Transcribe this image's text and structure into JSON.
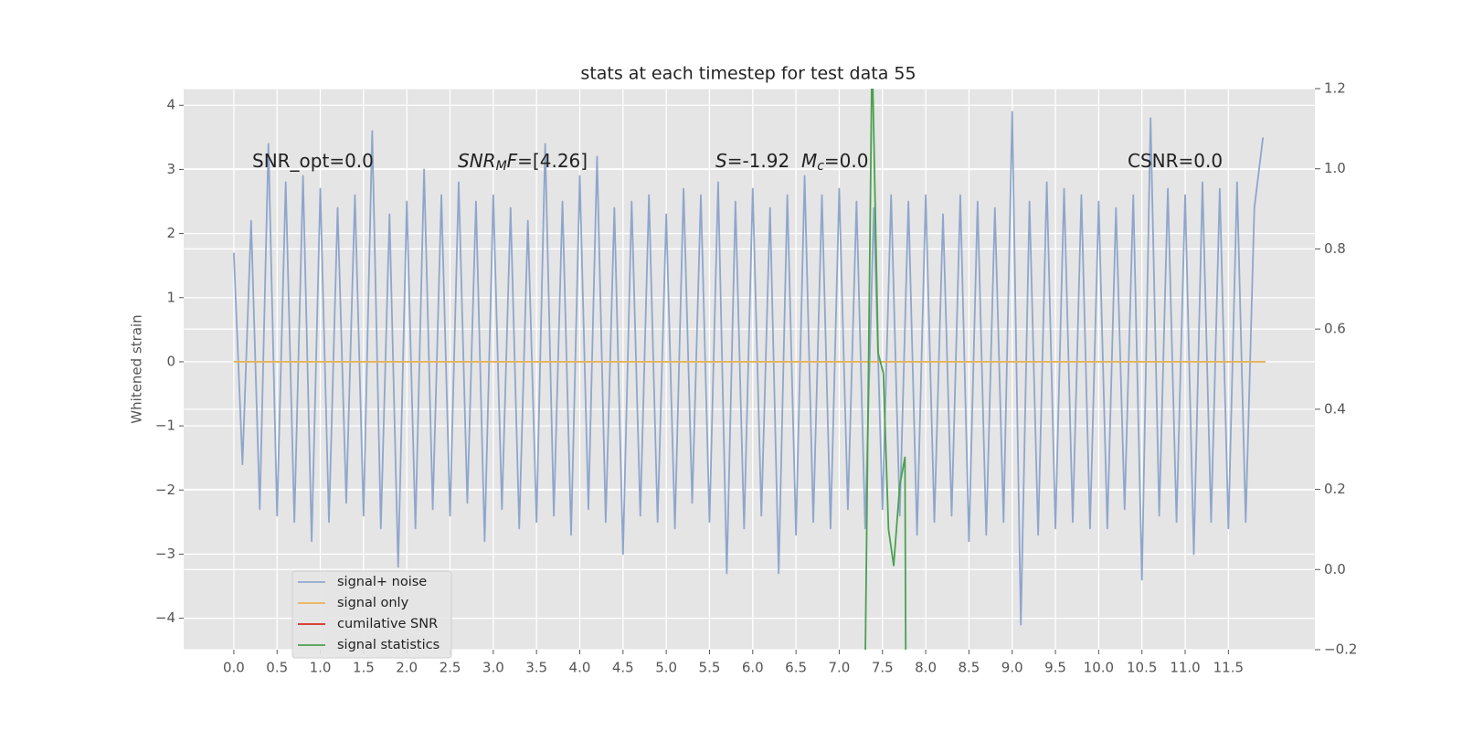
{
  "chart_data": {
    "type": "line",
    "title": "stats at each timestep for test data 55",
    "ylabel": "Whitened strain",
    "xlim": [
      -0.58,
      12.5
    ],
    "ylim": [
      -4.49,
      4.26
    ],
    "y2lim": [
      -0.2,
      1.2
    ],
    "grid": true,
    "legend": "lower left",
    "xticks": [
      {
        "value": 0,
        "label": "0.0"
      },
      0.5,
      {
        "value": 1,
        "label": "1.0"
      },
      1.5,
      {
        "value": 2,
        "label": "2.0"
      },
      2.5,
      {
        "value": 3,
        "label": "3.0"
      },
      3.5,
      {
        "value": 4,
        "label": "4.0"
      },
      4.5,
      {
        "value": 5,
        "label": "5.0"
      },
      5.5,
      {
        "value": 6,
        "label": "6.0"
      },
      6.5,
      {
        "value": 7,
        "label": "7.0"
      },
      7.5,
      {
        "value": 8,
        "label": "8.0"
      },
      8.5,
      {
        "value": 9,
        "label": "9.0"
      },
      9.5,
      {
        "value": 10,
        "label": "10.0"
      },
      10.5,
      {
        "value": 11,
        "label": "11.0"
      },
      11.5
    ],
    "yticks": [
      {
        "value": -4,
        "label": "−4"
      },
      {
        "value": -3,
        "label": "−3"
      },
      {
        "value": -2,
        "label": "−2"
      },
      {
        "value": -1,
        "label": "−1"
      },
      0,
      1,
      2,
      3,
      4
    ],
    "y2ticks": [
      {
        "value": -0.2,
        "label": "−0.2"
      },
      {
        "value": 0,
        "label": "0.0"
      },
      0.2,
      0.4,
      0.6,
      0.8,
      {
        "value": 1,
        "label": "1.0"
      },
      1.2
    ],
    "annotations": [
      {
        "runs": [
          {
            "text": "SNR_opt=0.0",
            "style": "normal"
          }
        ]
      },
      {
        "runs": [
          {
            "text": "SNR",
            "style": "italic"
          },
          {
            "text": "M",
            "style": "italic-sub"
          },
          {
            "text": "F",
            "style": "italic"
          },
          {
            "text": "=[4.26]",
            "style": "normal"
          }
        ]
      },
      {
        "runs": [
          {
            "text": "S",
            "style": "italic"
          },
          {
            "text": "=-1.92  ",
            "style": "normal"
          },
          {
            "text": "M",
            "style": "italic"
          },
          {
            "text": "c",
            "style": "italic-sub"
          },
          {
            "text": "=0.0",
            "style": "normal"
          }
        ]
      },
      {
        "runs": [
          {
            "text": "CSNR=0.0",
            "style": "normal"
          }
        ]
      }
    ],
    "series": [
      {
        "name": "signal+ noise",
        "color": "#8fa6cc",
        "axis": "y",
        "x": [
          0,
          0.1,
          0.2,
          0.3,
          0.4,
          0.5,
          0.6,
          0.7,
          0.8,
          0.9,
          1,
          1.1,
          1.2,
          1.3,
          1.4,
          1.5,
          1.6,
          1.7,
          1.8,
          1.9,
          2,
          2.1,
          2.2,
          2.3,
          2.4,
          2.5,
          2.6,
          2.7,
          2.8,
          2.9,
          3,
          3.1,
          3.2,
          3.3,
          3.4,
          3.5,
          3.6,
          3.7,
          3.8,
          3.9,
          4,
          4.1,
          4.2,
          4.3,
          4.4,
          4.5,
          4.6,
          4.7,
          4.8,
          4.9,
          5,
          5.1,
          5.2,
          5.3,
          5.4,
          5.5,
          5.6,
          5.7,
          5.8,
          5.9,
          6,
          6.1,
          6.2,
          6.3,
          6.4,
          6.5,
          6.6,
          6.7,
          6.8,
          6.9,
          7,
          7.1,
          7.2,
          7.3,
          7.4,
          7.5,
          7.6,
          7.7,
          7.8,
          7.9,
          8,
          8.1,
          8.2,
          8.3,
          8.4,
          8.5,
          8.6,
          8.7,
          8.8,
          8.9,
          9,
          9.1,
          9.2,
          9.3,
          9.4,
          9.5,
          9.6,
          9.7,
          9.8,
          9.9,
          10,
          10.1,
          10.2,
          10.3,
          10.4,
          10.5,
          10.6,
          10.7,
          10.8,
          10.9,
          11,
          11.1,
          11.2,
          11.3,
          11.4,
          11.5,
          11.6,
          11.7,
          11.8,
          11.9
        ],
        "values": [
          1.7,
          -1.6,
          2.2,
          -2.3,
          3.4,
          -2.4,
          2.8,
          -2.5,
          2.9,
          -2.8,
          2.7,
          -2.5,
          2.4,
          -2.2,
          2.6,
          -2.4,
          3.6,
          -2.6,
          2.3,
          -3.2,
          2.5,
          -2.6,
          3.0,
          -2.3,
          2.6,
          -2.4,
          2.8,
          -2.2,
          2.5,
          -2.8,
          2.6,
          -2.3,
          2.4,
          -2.6,
          2.2,
          -2.5,
          3.4,
          -2.4,
          2.5,
          -2.7,
          2.9,
          -2.3,
          3.2,
          -2.5,
          2.4,
          -3.0,
          2.5,
          -2.4,
          2.6,
          -2.5,
          2.3,
          -2.6,
          2.7,
          -2.2,
          2.6,
          -2.5,
          2.8,
          -3.3,
          2.5,
          -2.6,
          2.7,
          -2.4,
          2.4,
          -3.3,
          2.6,
          -2.7,
          2.9,
          -2.5,
          2.6,
          -2.6,
          2.7,
          -2.3,
          2.5,
          -2.6,
          2.4,
          -2.3,
          2.6,
          -2.4,
          2.5,
          -2.7,
          2.6,
          -2.5,
          2.3,
          -2.4,
          2.6,
          -2.8,
          2.5,
          -2.7,
          2.4,
          -2.5,
          3.9,
          -4.1,
          2.5,
          -2.7,
          2.8,
          -2.6,
          2.7,
          -2.5,
          2.6,
          -2.6,
          2.5,
          -2.6,
          2.4,
          -2.3,
          2.6,
          -3.4,
          3.8,
          -2.4,
          2.7,
          -2.5,
          2.6,
          -3.0,
          2.8,
          -2.5,
          2.7,
          -2.6,
          2.8,
          -2.5,
          2.4,
          3.5
        ]
      },
      {
        "name": "signal only",
        "color": "#e8b35a",
        "axis": "y",
        "x": [
          0,
          11.93
        ],
        "values": [
          0,
          0
        ]
      },
      {
        "name": "cumilative SNR",
        "color": "#d62b1f",
        "axis": "y2",
        "x": [],
        "values": []
      },
      {
        "name": "signal statistics",
        "color": "#4aa14f",
        "axis": "y2",
        "x": [
          7.3,
          7.38,
          7.45,
          7.51,
          7.57,
          7.63,
          7.7,
          7.76,
          7.77
        ],
        "values": [
          -0.25,
          1.3,
          0.54,
          0.49,
          0.1,
          0.01,
          0.21,
          0.28,
          -0.25
        ]
      }
    ]
  }
}
